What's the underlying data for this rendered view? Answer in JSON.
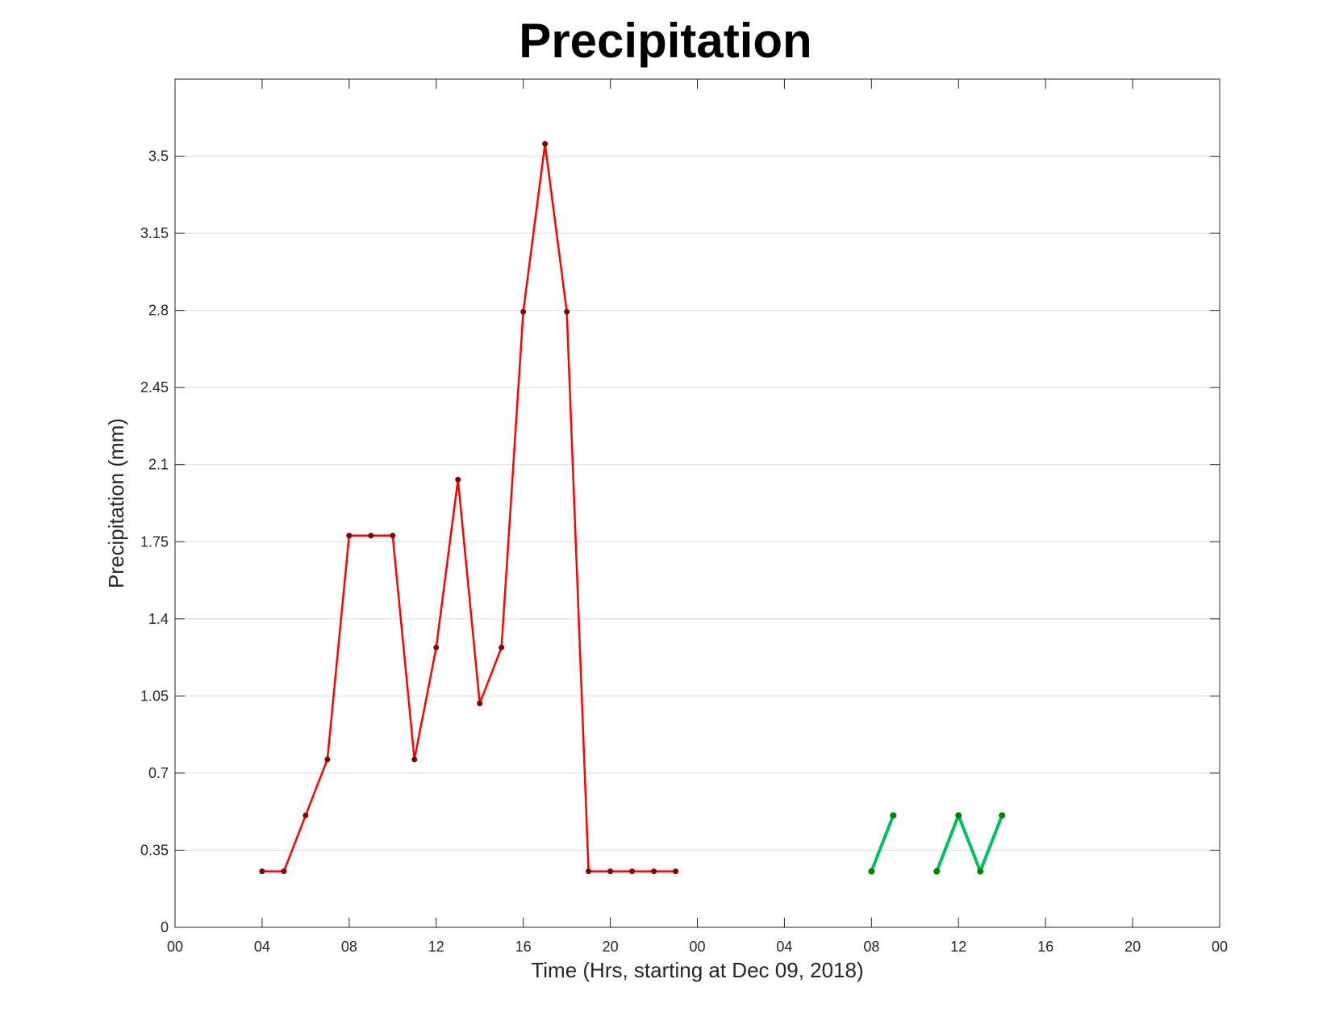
{
  "chart_data": {
    "type": "line",
    "title": "Precipitation",
    "xlabel": "Time (Hrs, starting at Dec 09, 2018)",
    "ylabel": "Precipitation (mm)",
    "x_unit": "hours",
    "xlim": [
      0,
      48
    ],
    "ylim": [
      0,
      3.85
    ],
    "x_ticks": [
      0,
      4,
      8,
      12,
      16,
      20,
      24,
      28,
      32,
      36,
      40,
      44,
      48
    ],
    "x_tick_labels": [
      "00",
      "04",
      "08",
      "12",
      "16",
      "20",
      "00",
      "04",
      "08",
      "12",
      "16",
      "20",
      "00"
    ],
    "y_ticks": [
      0,
      0.35,
      0.7,
      1.05,
      1.4,
      1.75,
      2.1,
      2.45,
      2.8,
      3.15,
      3.5
    ],
    "y_tick_labels": [
      "0",
      "0.35",
      "0.7",
      "1.05",
      "1.4",
      "1.75",
      "2.1",
      "2.45",
      "2.8",
      "3.15",
      "3.5"
    ],
    "grid": "horizontal",
    "series": [
      {
        "color": "#ff0000",
        "marker_color": "#800000",
        "points": [
          [
            4,
            0.254
          ],
          [
            5,
            0.254
          ],
          [
            6,
            0.508
          ],
          [
            7,
            0.762
          ],
          [
            8,
            1.778
          ],
          [
            9,
            1.778
          ],
          [
            10,
            1.778
          ],
          [
            11,
            0.762
          ],
          [
            12,
            1.27
          ],
          [
            13,
            2.032
          ],
          [
            14,
            1.016
          ],
          [
            15,
            1.27
          ],
          [
            16,
            2.794
          ],
          [
            17,
            3.556
          ],
          [
            18,
            2.794
          ],
          [
            19,
            0.254
          ],
          [
            20,
            0.254
          ],
          [
            21,
            0.254
          ],
          [
            22,
            0.254
          ],
          [
            23,
            0.254
          ]
        ]
      },
      {
        "color": "#00c060",
        "marker_color": "#008000",
        "segments": [
          [
            [
              32,
              0.254
            ],
            [
              33,
              0.508
            ]
          ],
          [
            [
              35,
              0.254
            ],
            [
              36,
              0.508
            ],
            [
              37,
              0.254
            ],
            [
              38,
              0.508
            ]
          ]
        ]
      }
    ]
  }
}
